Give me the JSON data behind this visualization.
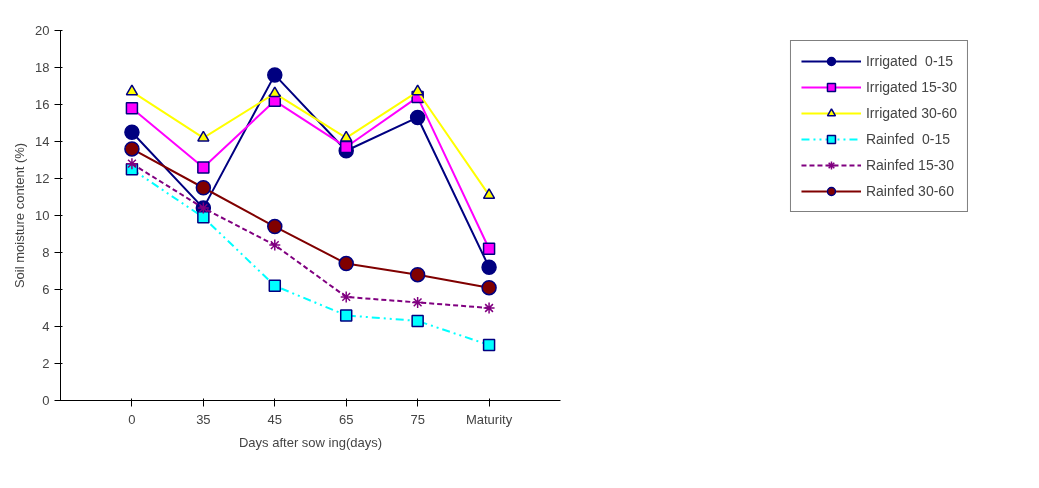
{
  "chart_data": {
    "type": "line",
    "xlabel": "Days after sow ing(days)",
    "ylabel": "Soil moisture content (%)",
    "categories": [
      "0",
      "35",
      "45",
      "65",
      "75",
      "Maturity"
    ],
    "ylim": [
      0,
      20
    ],
    "yticks": [
      0,
      2,
      4,
      6,
      8,
      10,
      12,
      14,
      16,
      18,
      20
    ],
    "grid": false,
    "legend": "right",
    "series": [
      {
        "name": "Irrigated  0-15",
        "color": "#000080",
        "marker": "circle",
        "line_style": "solid",
        "values": [
          14.5,
          10.4,
          17.6,
          13.5,
          15.3,
          7.2
        ]
      },
      {
        "name": "Irrigated 15-30",
        "color": "#ff00ff",
        "marker": "square",
        "line_style": "solid",
        "values": [
          15.8,
          12.6,
          16.2,
          13.7,
          16.4,
          8.2
        ]
      },
      {
        "name": "Irrigated 30-60",
        "color": "#ffff00",
        "marker": "triangle",
        "line_style": "solid",
        "values": [
          16.7,
          14.2,
          16.6,
          14.2,
          16.7,
          11.1
        ]
      },
      {
        "name": "Rainfed  0-15",
        "color": "#00ffff",
        "marker": "square",
        "line_style": "dotted",
        "values": [
          12.5,
          9.9,
          6.2,
          4.6,
          4.3,
          3.0
        ]
      },
      {
        "name": "Rainfed 15-30",
        "color": "#800080",
        "marker": "cross",
        "line_style": "dashed",
        "values": [
          12.8,
          10.4,
          8.4,
          5.6,
          5.3,
          5.0
        ]
      },
      {
        "name": "Rainfed 30-60",
        "color": "#800000",
        "marker": "circle",
        "line_style": "solid",
        "values": [
          13.6,
          11.5,
          9.4,
          7.4,
          6.8,
          6.1
        ]
      }
    ]
  }
}
